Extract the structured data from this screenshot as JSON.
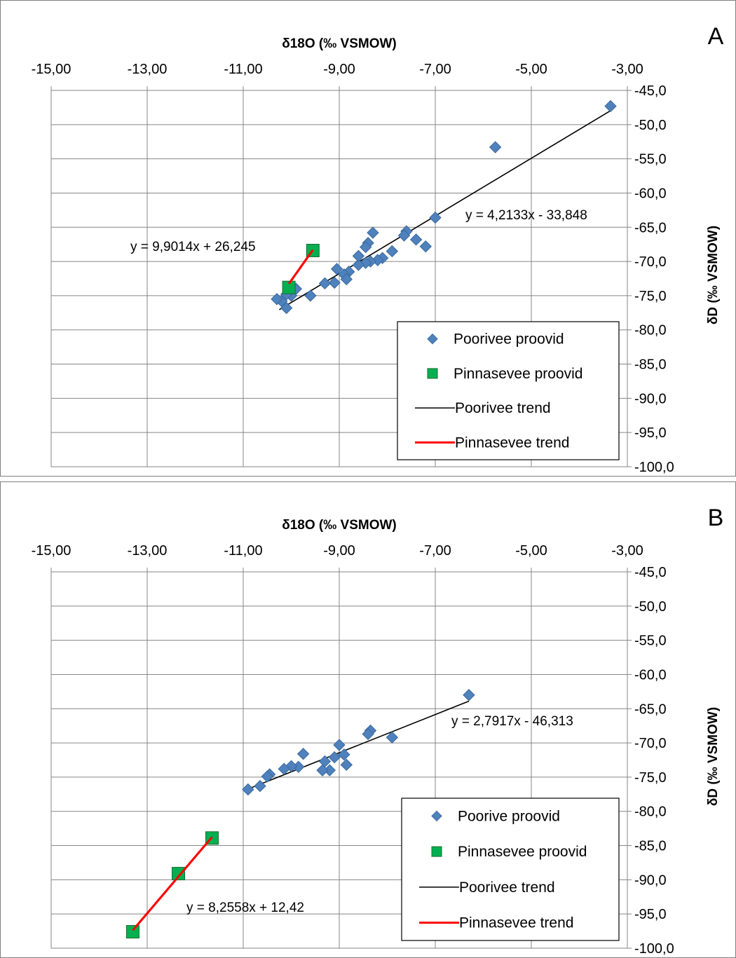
{
  "chart_data": [
    {
      "type": "scatter",
      "panel_label": "A",
      "xlabel": "δ18O (‰ VSMOW)",
      "ylabel": "δD (‰ VSMOW)",
      "xlim": [
        -15,
        -3
      ],
      "ylim": [
        -100,
        -45
      ],
      "x_ticks": [
        "-15,00",
        "-13,00",
        "-11,00",
        "-9,00",
        "-7,00",
        "-5,00",
        "-3,00"
      ],
      "y_ticks": [
        "-45,0",
        "-50,0",
        "-55,0",
        "-60,0",
        "-65,0",
        "-70,0",
        "-75,0",
        "-80,0",
        "-85,0",
        "-90,0",
        "-95,0",
        "-100,0"
      ],
      "legend_position": "bottom-right",
      "series": [
        {
          "name": "Poorivee proovid",
          "marker": "diamond",
          "color": "#4f81bd",
          "points": [
            [
              -3.35,
              -47.3
            ],
            [
              -5.75,
              -53.3
            ],
            [
              -7.0,
              -63.6
            ],
            [
              -7.6,
              -65.6
            ],
            [
              -7.65,
              -66.2
            ],
            [
              -7.2,
              -67.8
            ],
            [
              -7.4,
              -66.8
            ],
            [
              -8.3,
              -65.8
            ],
            [
              -8.4,
              -67.3
            ],
            [
              -8.45,
              -67.9
            ],
            [
              -7.9,
              -68.5
            ],
            [
              -8.1,
              -69.5
            ],
            [
              -8.2,
              -69.8
            ],
            [
              -8.35,
              -70.0
            ],
            [
              -8.45,
              -70.2
            ],
            [
              -8.6,
              -70.5
            ],
            [
              -8.6,
              -69.2
            ],
            [
              -8.8,
              -71.5
            ],
            [
              -8.9,
              -71.9
            ],
            [
              -9.05,
              -71.1
            ],
            [
              -8.85,
              -72.6
            ],
            [
              -9.1,
              -73.1
            ],
            [
              -9.3,
              -73.2
            ],
            [
              -9.6,
              -75.0
            ],
            [
              -9.9,
              -74.0
            ],
            [
              -10.0,
              -75.0
            ],
            [
              -10.1,
              -74.8
            ],
            [
              -10.1,
              -76.8
            ],
            [
              -10.2,
              -75.8
            ],
            [
              -10.3,
              -75.5
            ]
          ]
        },
        {
          "name": "Pinnasevee proovid",
          "marker": "square",
          "color": "#00b050",
          "points": [
            [
              -10.05,
              -73.8
            ],
            [
              -9.55,
              -68.4
            ]
          ]
        },
        {
          "name": "Poorivee trend",
          "type": "line",
          "color": "#000000",
          "points": [
            [
              -10.25,
              -77.05
            ],
            [
              -3.35,
              -47.96
            ]
          ],
          "equation": "y = 4,2133x - 33,848"
        },
        {
          "name": "Pinnasevee trend",
          "type": "line",
          "color": "#ff0000",
          "points": [
            [
              -10.05,
              -73.27
            ],
            [
              -9.55,
              -68.31
            ]
          ],
          "equation": "y = 9,9014x + 26,245"
        }
      ]
    },
    {
      "type": "scatter",
      "panel_label": "B",
      "xlabel": "δ18O (‰ VSMOW)",
      "ylabel": "δD (‰ VSMOW)",
      "xlim": [
        -15,
        -3
      ],
      "ylim": [
        -100,
        -45
      ],
      "x_ticks": [
        "-15,00",
        "-13,00",
        "-11,00",
        "-9,00",
        "-7,00",
        "-5,00",
        "-3,00"
      ],
      "y_ticks": [
        "-45,0",
        "-50,0",
        "-55,0",
        "-60,0",
        "-65,0",
        "-70,0",
        "-75,0",
        "-80,0",
        "-85,0",
        "-90,0",
        "-95,0",
        "-100,0"
      ],
      "legend_position": "bottom-right",
      "series": [
        {
          "name": "Poorive proovid",
          "marker": "diamond",
          "color": "#4f81bd",
          "points": [
            [
              -6.3,
              -63.0
            ],
            [
              -7.9,
              -69.2
            ],
            [
              -8.35,
              -68.2
            ],
            [
              -8.4,
              -68.7
            ],
            [
              -9.0,
              -70.3
            ],
            [
              -8.9,
              -71.7
            ],
            [
              -9.1,
              -72.1
            ],
            [
              -9.3,
              -72.7
            ],
            [
              -8.85,
              -73.2
            ],
            [
              -9.2,
              -74.0
            ],
            [
              -9.35,
              -74.0
            ],
            [
              -9.75,
              -71.6
            ],
            [
              -9.85,
              -73.5
            ],
            [
              -10.0,
              -73.4
            ],
            [
              -10.15,
              -73.8
            ],
            [
              -10.45,
              -74.6
            ],
            [
              -10.5,
              -74.9
            ],
            [
              -10.65,
              -76.3
            ],
            [
              -10.9,
              -76.8
            ]
          ]
        },
        {
          "name": "Pinnasevee proovid",
          "marker": "square",
          "color": "#00b050",
          "points": [
            [
              -11.65,
              -83.9
            ],
            [
              -12.35,
              -89.1
            ],
            [
              -13.3,
              -97.6
            ]
          ]
        },
        {
          "name": "Poorivee trend",
          "type": "line",
          "color": "#000000",
          "points": [
            [
              -10.9,
              -76.74
            ],
            [
              -6.3,
              -63.9
            ]
          ],
          "equation": "y = 2,7917x - 46,313"
        },
        {
          "name": "Pinnasevee trend",
          "type": "line",
          "color": "#ff0000",
          "points": [
            [
              -13.3,
              -97.38
            ],
            [
              -11.65,
              -83.76
            ]
          ],
          "equation": "y = 8,2558x + 12,42"
        }
      ]
    }
  ]
}
